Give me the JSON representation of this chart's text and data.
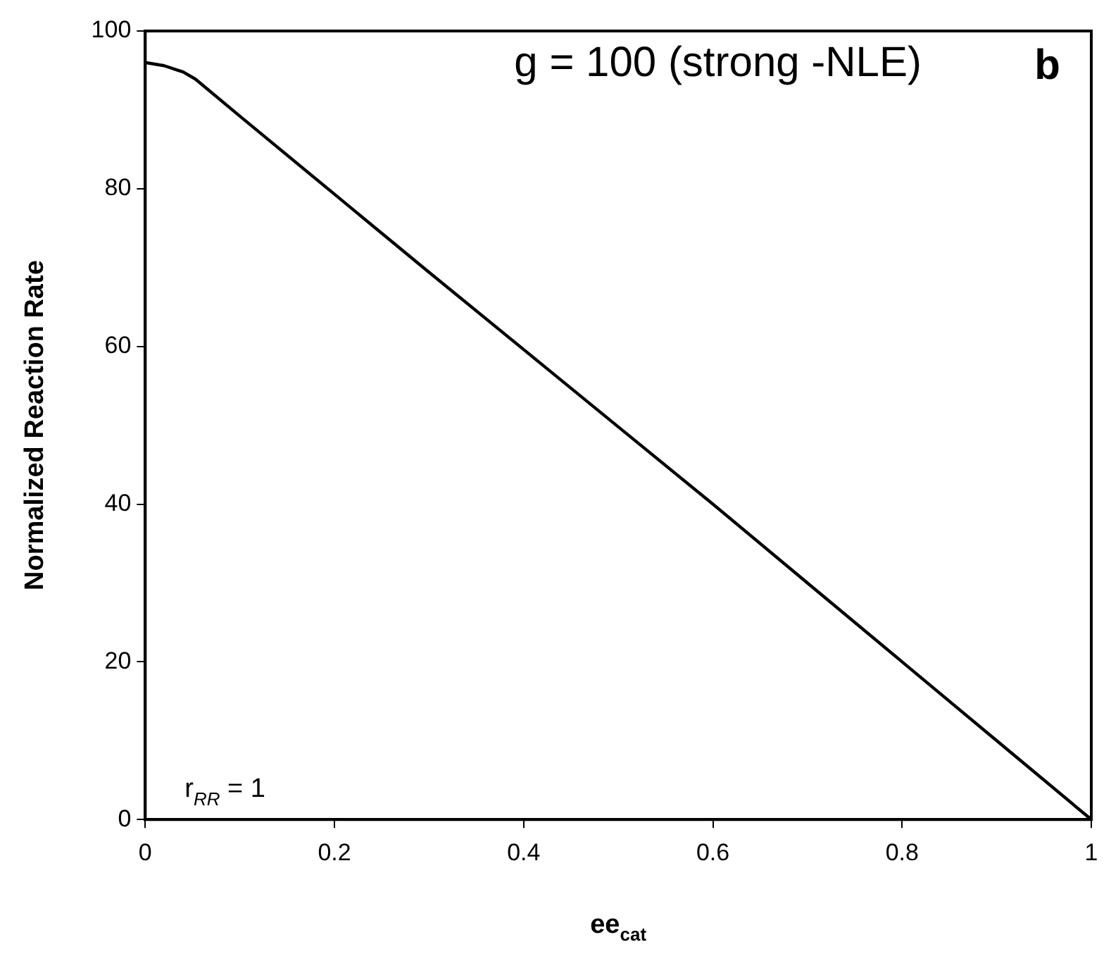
{
  "chart_data": {
    "type": "line",
    "xlabel": "ee$_{cat}$",
    "ylabel": "Normalized Reaction Rate",
    "annotations": [
      "g = 100 (strong -NLE)",
      "b",
      "r$_{RR}$ = 1"
    ],
    "x": [
      0,
      0.02,
      0.04,
      0.053,
      0.1,
      0.2,
      0.3,
      0.4,
      0.5,
      0.6,
      0.7,
      0.8,
      0.9,
      1
    ],
    "series": [
      {
        "color": "#000000",
        "values": [
          96,
          95.6,
          94.8,
          93.9,
          89.2,
          79.3,
          69.4,
          59.6,
          49.8,
          40,
          30,
          20,
          10,
          0
        ]
      }
    ],
    "xlim": [
      0,
      1
    ],
    "xticks": [
      0,
      0.2,
      0.4,
      0.6,
      0.8,
      1
    ],
    "ylim": [
      0,
      100
    ],
    "yticks": [
      0,
      20,
      40,
      60,
      80,
      100
    ],
    "grid": false,
    "legend": false,
    "marker": "none",
    "line_style": "solid"
  }
}
